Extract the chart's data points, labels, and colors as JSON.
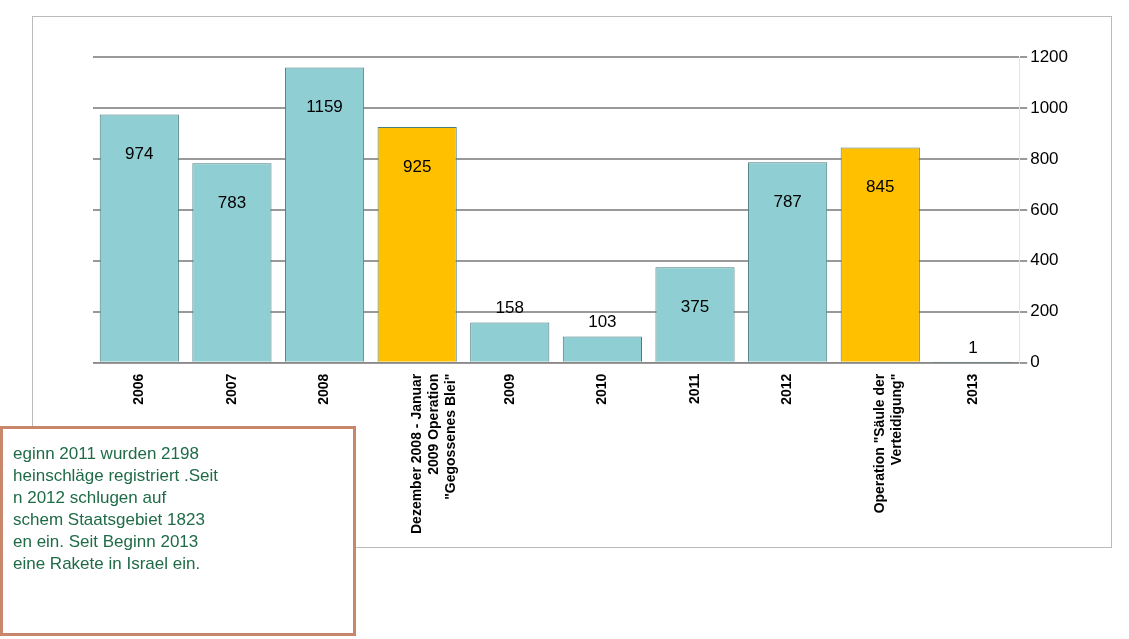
{
  "chart_data": {
    "type": "bar",
    "categories": [
      "2006",
      "2007",
      "2008",
      "Dezember 2008 - Januar\n2009 Operation\n\"Gegossenes Blei\"",
      "2009",
      "2010",
      "2011",
      "2012",
      "Operation \"Säule der\nVerteidigung\"",
      "2013"
    ],
    "values": [
      974,
      783,
      1159,
      925,
      158,
      103,
      375,
      787,
      845,
      1
    ],
    "colors": [
      "#8fcfd3",
      "#8fcfd3",
      "#8fcfd3",
      "#ffc000",
      "#8fcfd3",
      "#8fcfd3",
      "#8fcfd3",
      "#8fcfd3",
      "#ffc000",
      "#8fcfd3"
    ],
    "ylim": [
      0,
      1200
    ],
    "yticks": [
      0,
      200,
      400,
      600,
      800,
      1000,
      1200
    ],
    "grid": "y",
    "legend": false,
    "data_labels": true,
    "annotations": [
      "eginn 2011 wurden 2198\nheinschläge registriert  .Seit\nn 2012 schlugen auf\nschem Staatsgebiet 1823\nen ein. Seit Beginn 2013\n eine Rakete in Israel ein."
    ]
  }
}
